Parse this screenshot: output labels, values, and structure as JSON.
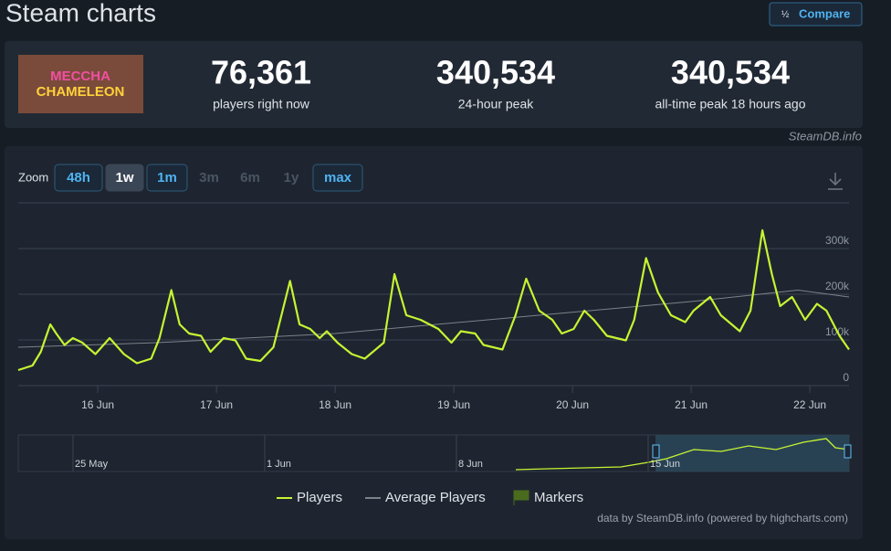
{
  "header": {
    "title": "Steam charts",
    "compare": "Compare"
  },
  "game": {
    "logo_line1": "MECCHA",
    "logo_line2": "CHAMELEON"
  },
  "stats": [
    {
      "value": "76,361",
      "label": "players right now"
    },
    {
      "value": "340,534",
      "label": "24-hour peak"
    },
    {
      "value": "340,534",
      "label": "all-time peak 18 hours ago"
    }
  ],
  "source": "SteamDB.info",
  "zoom": {
    "label": "Zoom",
    "buttons": [
      "48h",
      "1w",
      "1m",
      "3m",
      "6m",
      "1y",
      "max"
    ]
  },
  "chart_data": {
    "type": "line",
    "x": [
      15.33,
      15.45,
      15.52,
      15.6,
      15.65,
      15.72,
      15.79,
      15.87,
      15.98,
      16.1,
      16.22,
      16.33,
      16.45,
      16.52,
      16.62,
      16.69,
      16.77,
      16.87,
      16.95,
      17.06,
      17.16,
      17.25,
      17.37,
      17.48,
      17.62,
      17.7,
      17.79,
      17.87,
      17.93,
      18.02,
      18.14,
      18.25,
      18.41,
      18.5,
      18.6,
      18.72,
      18.87,
      18.98,
      19.06,
      19.18,
      19.25,
      19.41,
      19.52,
      19.61,
      19.72,
      19.83,
      19.91,
      20.01,
      20.1,
      20.18,
      20.29,
      20.45,
      20.52,
      20.62,
      20.72,
      20.83,
      20.95,
      21.02,
      21.16,
      21.25,
      21.41,
      21.5,
      21.6,
      21.68,
      21.75,
      21.85,
      21.96,
      22.06,
      22.14,
      22.25,
      22.33
    ],
    "series": [
      {
        "name": "Players",
        "color": "#c6f432",
        "values": [
          34000,
          44000,
          74000,
          134000,
          114000,
          89000,
          104000,
          94000,
          69000,
          104000,
          69000,
          49000,
          59000,
          104000,
          209000,
          134000,
          114000,
          109000,
          74000,
          104000,
          99000,
          59000,
          54000,
          84000,
          229000,
          134000,
          124000,
          104000,
          119000,
          94000,
          69000,
          59000,
          94000,
          244000,
          154000,
          144000,
          124000,
          94000,
          119000,
          114000,
          89000,
          79000,
          154000,
          234000,
          164000,
          144000,
          114000,
          124000,
          164000,
          144000,
          109000,
          99000,
          144000,
          279000,
          204000,
          154000,
          139000,
          164000,
          194000,
          154000,
          119000,
          164000,
          340000,
          244000,
          174000,
          194000,
          144000,
          179000,
          164000,
          109000,
          79000
        ]
      },
      {
        "name": "Average Players",
        "color": "#7c828a",
        "x": [
          15.33,
          16.5,
          18,
          19.5,
          21,
          21.9,
          22.33
        ],
        "values": [
          84000,
          94000,
          114000,
          149000,
          184000,
          209000,
          194000
        ]
      }
    ],
    "markers_label": "Markers",
    "markers_color": "#4a6b1e",
    "xlim": [
      15.33,
      22.33
    ],
    "xticks": [
      {
        "value": 16,
        "label": "16 Jun"
      },
      {
        "value": 17,
        "label": "17 Jun"
      },
      {
        "value": 18,
        "label": "18 Jun"
      },
      {
        "value": 19,
        "label": "19 Jun"
      },
      {
        "value": 20,
        "label": "20 Jun"
      },
      {
        "value": 21,
        "label": "21 Jun"
      },
      {
        "value": 22,
        "label": "22 Jun"
      }
    ],
    "ylim": [
      0,
      400000
    ],
    "yticks": [
      0,
      {
        "value": 100000,
        "label": "100k"
      },
      {
        "value": 200000,
        "label": "200k"
      },
      {
        "value": 300000,
        "label": "300k"
      }
    ],
    "grid": true
  },
  "navigator": {
    "labels": [
      "25 May",
      "1 Jun",
      "8 Jun",
      "15 Jun"
    ]
  },
  "credits": "data by SteamDB.info (powered by highcharts.com)"
}
